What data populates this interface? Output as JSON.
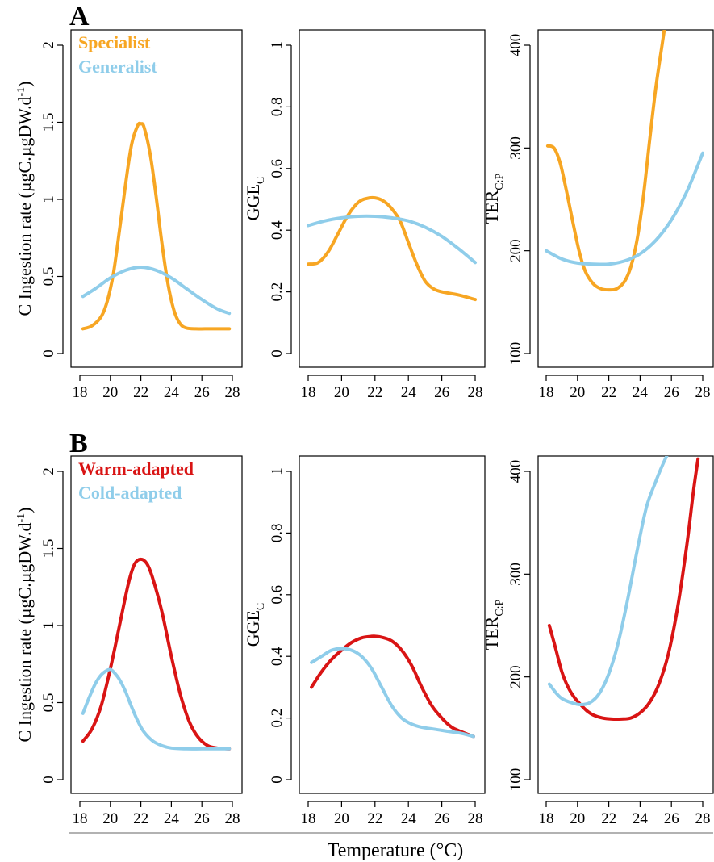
{
  "figure": {
    "xlabel": "Temperature (°C)"
  },
  "chart_data": [
    {
      "id": "A1",
      "type": "line",
      "panel": "A",
      "row": 0,
      "col": 0,
      "ylabel": "C Ingestion rate (µgC.µgDW.d⁻¹)",
      "ylabel_parts": {
        "main": "C Ingestion rate (µgC.µgDW.d",
        "sup": "-1",
        "end": ")"
      },
      "xlim": [
        18,
        28
      ],
      "ylim": [
        0,
        2
      ],
      "xticks": [
        18,
        20,
        22,
        24,
        26,
        28
      ],
      "yticks": [
        0,
        0.5,
        1,
        1.5,
        2
      ],
      "ytick_labels": [
        "0",
        "0.5",
        "1",
        "1.5",
        "2"
      ],
      "legend": [
        {
          "label": "Specialist",
          "color": "#F7A623"
        },
        {
          "label": "Generalist",
          "color": "#8FCDEA"
        }
      ],
      "series": [
        {
          "name": "Specialist",
          "color": "#F7A623",
          "x": [
            18.2,
            18.8,
            19.4,
            19.8,
            20.2,
            20.6,
            21.0,
            21.4,
            21.8,
            22.0,
            22.2,
            22.6,
            23.0,
            23.4,
            23.8,
            24.2,
            24.6,
            25.0,
            25.6,
            26.2,
            27.0,
            27.8
          ],
          "y": [
            0.16,
            0.18,
            0.24,
            0.34,
            0.52,
            0.8,
            1.1,
            1.36,
            1.48,
            1.49,
            1.47,
            1.3,
            1.02,
            0.7,
            0.44,
            0.27,
            0.19,
            0.165,
            0.16,
            0.16,
            0.16,
            0.16
          ]
        },
        {
          "name": "Generalist",
          "color": "#8FCDEA",
          "x": [
            18.2,
            19.0,
            20.0,
            21.0,
            22.0,
            23.0,
            24.0,
            25.0,
            26.0,
            27.0,
            27.8
          ],
          "y": [
            0.37,
            0.42,
            0.49,
            0.54,
            0.56,
            0.54,
            0.49,
            0.42,
            0.35,
            0.29,
            0.26
          ]
        }
      ]
    },
    {
      "id": "A2",
      "type": "line",
      "panel": "A",
      "row": 0,
      "col": 1,
      "ylabel_parts": {
        "main": "GGE",
        "sub": "C"
      },
      "xlim": [
        18,
        28
      ],
      "ylim": [
        0,
        1
      ],
      "xticks": [
        18,
        20,
        22,
        24,
        26,
        28
      ],
      "yticks": [
        0,
        0.2,
        0.4,
        0.6,
        0.8,
        1
      ],
      "ytick_labels": [
        "0",
        "0.2",
        "0.4",
        "0.6",
        "0.8",
        "1"
      ],
      "series": [
        {
          "name": "Specialist",
          "color": "#F7A623",
          "x": [
            18.0,
            18.6,
            19.2,
            19.8,
            20.4,
            21.0,
            21.5,
            22.0,
            22.5,
            23.0,
            23.5,
            24.0,
            24.5,
            25.0,
            25.5,
            26.0,
            27.0,
            28.0
          ],
          "y": [
            0.29,
            0.295,
            0.33,
            0.39,
            0.45,
            0.49,
            0.503,
            0.505,
            0.495,
            0.47,
            0.43,
            0.36,
            0.29,
            0.235,
            0.21,
            0.2,
            0.19,
            0.175
          ]
        },
        {
          "name": "Generalist",
          "color": "#8FCDEA",
          "x": [
            18.0,
            19.0,
            20.0,
            21.0,
            22.0,
            23.0,
            24.0,
            25.0,
            26.0,
            27.0,
            28.0
          ],
          "y": [
            0.415,
            0.43,
            0.44,
            0.445,
            0.445,
            0.44,
            0.43,
            0.41,
            0.38,
            0.34,
            0.295
          ]
        }
      ]
    },
    {
      "id": "A3",
      "type": "line",
      "panel": "A",
      "row": 0,
      "col": 2,
      "ylabel_parts": {
        "main": "TER",
        "sub": "C:P"
      },
      "xlim": [
        18,
        28
      ],
      "ylim": [
        100,
        400
      ],
      "xticks": [
        18,
        20,
        22,
        24,
        26,
        28
      ],
      "yticks": [
        100,
        200,
        300,
        400
      ],
      "ytick_labels": [
        "100",
        "200",
        "300",
        "400"
      ],
      "series": [
        {
          "name": "Specialist",
          "color": "#F7A623",
          "x": [
            18.1,
            18.5,
            18.9,
            19.3,
            19.7,
            20.1,
            20.5,
            21.0,
            21.5,
            22.0,
            22.5,
            23.0,
            23.4,
            23.8,
            24.2,
            24.6,
            25.0,
            25.4,
            25.7
          ],
          "y": [
            302,
            300,
            285,
            258,
            228,
            200,
            180,
            168,
            163,
            162,
            163,
            170,
            184,
            210,
            252,
            306,
            358,
            400,
            430
          ]
        },
        {
          "name": "Generalist",
          "color": "#8FCDEA",
          "x": [
            18.0,
            19.0,
            20.0,
            21.0,
            22.0,
            23.0,
            24.0,
            25.0,
            26.0,
            27.0,
            28.0
          ],
          "y": [
            200,
            192,
            188,
            187,
            187,
            190,
            197,
            210,
            230,
            258,
            295
          ]
        }
      ]
    },
    {
      "id": "B1",
      "type": "line",
      "panel": "B",
      "row": 1,
      "col": 0,
      "ylabel": "C Ingestion rate (µgC.µgDW.d⁻¹)",
      "ylabel_parts": {
        "main": "C Ingestion rate (µgC.µgDW.d",
        "sup": "-1",
        "end": ")"
      },
      "xlim": [
        18,
        28
      ],
      "ylim": [
        0,
        2
      ],
      "xticks": [
        18,
        20,
        22,
        24,
        26,
        28
      ],
      "yticks": [
        0,
        0.5,
        1,
        1.5,
        2
      ],
      "ytick_labels": [
        "0",
        "0.5",
        "1",
        "1.5",
        "2"
      ],
      "legend": [
        {
          "label": "Warm-adapted",
          "color": "#D91414"
        },
        {
          "label": "Cold-adapted",
          "color": "#8FCDEA"
        }
      ],
      "series": [
        {
          "name": "Warm-adapted",
          "color": "#D91414",
          "x": [
            18.2,
            18.8,
            19.4,
            20.0,
            20.6,
            21.2,
            21.6,
            22.0,
            22.4,
            22.8,
            23.4,
            24.0,
            24.6,
            25.2,
            25.8,
            26.4,
            27.0,
            27.8
          ],
          "y": [
            0.25,
            0.33,
            0.48,
            0.72,
            1.0,
            1.28,
            1.4,
            1.43,
            1.4,
            1.3,
            1.08,
            0.8,
            0.55,
            0.37,
            0.27,
            0.22,
            0.205,
            0.2
          ]
        },
        {
          "name": "Cold-adapted",
          "color": "#8FCDEA",
          "x": [
            18.2,
            18.6,
            19.0,
            19.4,
            19.8,
            20.0,
            20.2,
            20.6,
            21.0,
            21.4,
            21.8,
            22.2,
            22.8,
            23.4,
            24.0,
            25.0,
            26.0,
            27.0,
            27.8
          ],
          "y": [
            0.43,
            0.53,
            0.62,
            0.68,
            0.71,
            0.715,
            0.7,
            0.65,
            0.57,
            0.47,
            0.38,
            0.31,
            0.25,
            0.22,
            0.205,
            0.2,
            0.2,
            0.2,
            0.2
          ]
        }
      ]
    },
    {
      "id": "B2",
      "type": "line",
      "panel": "B",
      "row": 1,
      "col": 1,
      "ylabel_parts": {
        "main": "GGE",
        "sub": "C"
      },
      "xlim": [
        18,
        28
      ],
      "ylim": [
        0,
        1
      ],
      "xticks": [
        18,
        20,
        22,
        24,
        26,
        28
      ],
      "yticks": [
        0,
        0.2,
        0.4,
        0.6,
        0.8,
        1
      ],
      "ytick_labels": [
        "0",
        "0.2",
        "0.4",
        "0.6",
        "0.8",
        "1"
      ],
      "series": [
        {
          "name": "Warm-adapted",
          "color": "#D91414",
          "x": [
            18.2,
            18.8,
            19.4,
            20.0,
            20.6,
            21.2,
            21.8,
            22.0,
            22.4,
            23.0,
            23.6,
            24.2,
            24.8,
            25.4,
            26.0,
            26.6,
            27.2,
            27.9
          ],
          "y": [
            0.3,
            0.35,
            0.39,
            0.42,
            0.445,
            0.46,
            0.465,
            0.465,
            0.462,
            0.45,
            0.42,
            0.37,
            0.3,
            0.24,
            0.2,
            0.17,
            0.155,
            0.14
          ]
        },
        {
          "name": "Cold-adapted",
          "color": "#8FCDEA",
          "x": [
            18.2,
            18.8,
            19.4,
            20.0,
            20.6,
            21.2,
            21.8,
            22.4,
            23.0,
            23.6,
            24.2,
            24.8,
            25.4,
            26.0,
            26.6,
            27.2,
            27.9
          ],
          "y": [
            0.38,
            0.4,
            0.42,
            0.425,
            0.42,
            0.4,
            0.36,
            0.3,
            0.24,
            0.2,
            0.18,
            0.17,
            0.165,
            0.16,
            0.155,
            0.15,
            0.14
          ]
        }
      ]
    },
    {
      "id": "B3",
      "type": "line",
      "panel": "B",
      "row": 1,
      "col": 2,
      "ylabel_parts": {
        "main": "TER",
        "sub": "C:P"
      },
      "xlim": [
        18,
        28
      ],
      "ylim": [
        100,
        400
      ],
      "xticks": [
        18,
        20,
        22,
        24,
        26,
        28
      ],
      "yticks": [
        100,
        200,
        300,
        400
      ],
      "ytick_labels": [
        "100",
        "200",
        "300",
        "400"
      ],
      "series": [
        {
          "name": "Warm-adapted",
          "color": "#D91414",
          "x": [
            18.2,
            18.6,
            19.0,
            19.4,
            19.8,
            20.2,
            20.6,
            21.0,
            21.6,
            22.2,
            22.8,
            23.4,
            24.0,
            24.6,
            25.2,
            25.8,
            26.4,
            27.0,
            27.4,
            27.7
          ],
          "y": [
            250,
            228,
            205,
            190,
            180,
            173,
            167,
            163,
            160,
            159,
            159,
            160,
            165,
            175,
            193,
            222,
            268,
            330,
            380,
            412
          ]
        },
        {
          "name": "Cold-adapted",
          "color": "#8FCDEA",
          "x": [
            18.2,
            18.6,
            19.0,
            19.6,
            20.2,
            20.8,
            21.4,
            22.0,
            22.6,
            23.2,
            23.8,
            24.4,
            25.0,
            25.4,
            25.7
          ],
          "y": [
            193,
            185,
            179,
            175,
            173,
            175,
            184,
            203,
            233,
            275,
            322,
            365,
            390,
            405,
            415
          ]
        }
      ]
    }
  ]
}
